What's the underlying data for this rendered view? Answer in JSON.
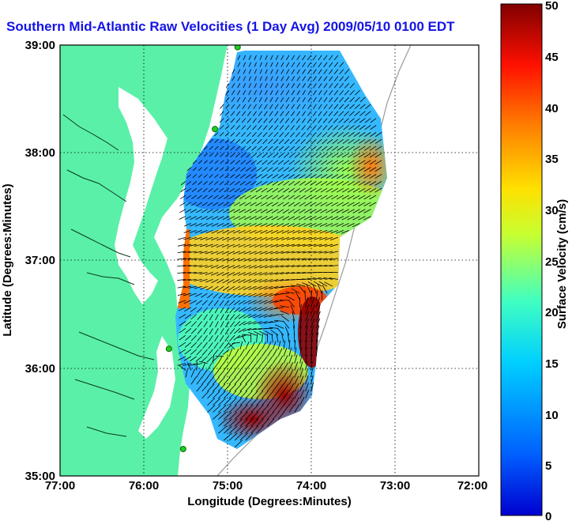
{
  "title": "Southern Mid-Atlantic Raw Velocities (1 Day Avg) 2009/05/10 0100 EDT",
  "axes": {
    "xlabel": "Longitude (Degrees:Minutes)",
    "ylabel": "Latitude (Degrees:Minutes)",
    "x_ticks": [
      "77:00",
      "76:00",
      "75:00",
      "74:00",
      "73:00",
      "72:00"
    ],
    "y_ticks": [
      "39:00",
      "38:00",
      "37:00",
      "36:00",
      "35:00"
    ],
    "grid": true
  },
  "colorbar": {
    "label": "Surface Velocity (cm/s)",
    "ticks": [
      "0",
      "5",
      "10",
      "15",
      "20",
      "25",
      "30",
      "35",
      "40",
      "45",
      "50"
    ],
    "range": [
      0,
      50
    ]
  },
  "colors": {
    "land": "#5af0a8",
    "ocean_background": "#ffffff",
    "title": "#1414e6",
    "station_marker": "#22cc22"
  },
  "chart_data": {
    "type": "heatmap",
    "xlim": [
      -77,
      -72
    ],
    "ylim": [
      35,
      39
    ],
    "xlabel": "Longitude (Degrees:Minutes)",
    "ylabel": "Latitude (Degrees:Minutes)",
    "colorbar_range": [
      0,
      50
    ],
    "stations": [
      {
        "lon": -74.88,
        "lat": 38.98
      },
      {
        "lon": -75.15,
        "lat": 38.22
      },
      {
        "lon": -75.7,
        "lat": 36.18
      },
      {
        "lon": -75.53,
        "lat": 35.25
      }
    ],
    "velocity_field_approx": [
      {
        "lon": -74.6,
        "lat": 38.75,
        "speed": 8,
        "dir_deg": 200
      },
      {
        "lon": -74.0,
        "lat": 38.5,
        "speed": 12,
        "dir_deg": 210
      },
      {
        "lon": -75.2,
        "lat": 37.9,
        "speed": 6,
        "dir_deg": 225
      },
      {
        "lon": -73.5,
        "lat": 37.9,
        "speed": 28,
        "dir_deg": 240
      },
      {
        "lon": -74.2,
        "lat": 37.6,
        "speed": 22,
        "dir_deg": 235
      },
      {
        "lon": -74.8,
        "lat": 37.1,
        "speed": 25,
        "dir_deg": 250
      },
      {
        "lon": -74.1,
        "lat": 37.0,
        "speed": 30,
        "dir_deg": 260
      },
      {
        "lon": -74.5,
        "lat": 36.6,
        "speed": 38,
        "dir_deg": 245
      },
      {
        "lon": -74.0,
        "lat": 36.5,
        "speed": 48,
        "dir_deg": 30
      },
      {
        "lon": -75.1,
        "lat": 36.5,
        "speed": 15,
        "dir_deg": 200
      },
      {
        "lon": -74.6,
        "lat": 36.0,
        "speed": 28,
        "dir_deg": 40
      },
      {
        "lon": -74.8,
        "lat": 35.6,
        "speed": 45,
        "dir_deg": 45
      },
      {
        "lon": -75.1,
        "lat": 35.4,
        "speed": 47,
        "dir_deg": 50
      },
      {
        "lon": -75.4,
        "lat": 36.9,
        "speed": 33,
        "dir_deg": 270
      }
    ]
  }
}
